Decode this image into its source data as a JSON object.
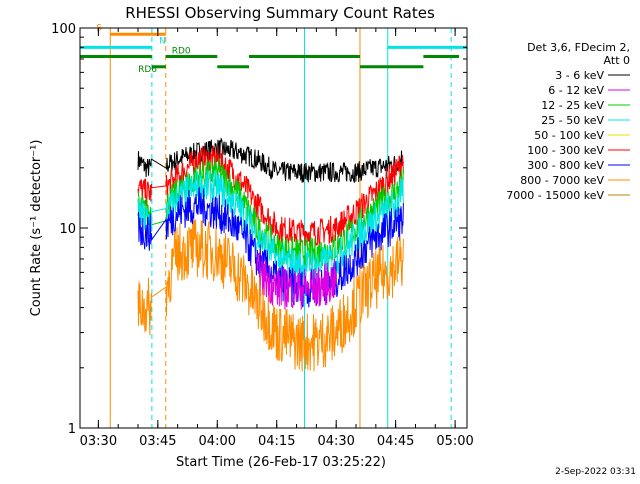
{
  "chart_data": {
    "type": "line",
    "title": "RHESSI Observing Summary Count Rates",
    "xlabel": "Start Time (26-Feb-17 03:25:22)",
    "ylabel": "Count Rate (s⁻¹ detector⁻¹)",
    "y_scale": "log",
    "ylim": [
      1,
      100
    ],
    "xlim": [
      "03:25:22",
      "05:03:00"
    ],
    "x_ticks": [
      "03:30",
      "03:45",
      "04:00",
      "04:15",
      "04:30",
      "04:45",
      "05:00"
    ],
    "y_ticks": [
      "1",
      "10",
      "100"
    ],
    "footer": "2-Sep-2022 03:31",
    "legend": {
      "header": [
        "Det 3,6, FDecim 2,",
        "Att 0"
      ],
      "placement": "top-right",
      "entries": [
        {
          "label": "3 - 6 keV",
          "color": "#000000"
        },
        {
          "label": "6 - 12 keV",
          "color": "#e000e0"
        },
        {
          "label": "12 - 25 keV",
          "color": "#00cc00"
        },
        {
          "label": "25 - 50 keV",
          "color": "#00e5e5"
        },
        {
          "label": "50 - 100 keV",
          "color": "#e5e500"
        },
        {
          "label": "100 - 300 keV",
          "color": "#ff0000"
        },
        {
          "label": "300 - 800 keV",
          "color": "#0000ff"
        },
        {
          "label": "800 - 7000 keV",
          "color": "#ff8c00"
        },
        {
          "label": "7000 - 15000 keV",
          "color": "#b8860b"
        }
      ]
    },
    "data_start": "03:40",
    "data_end": "04:47",
    "series": [
      {
        "name": "3 - 6 keV",
        "color": "#000000",
        "x": [
          "03:40",
          "03:42",
          "03:44",
          "03:46",
          "03:50",
          "03:55",
          "04:00",
          "04:05",
          "04:10",
          "04:15",
          "04:20",
          "04:25",
          "04:30",
          "04:35",
          "04:40",
          "04:45",
          "04:47"
        ],
        "y": [
          22,
          20,
          20,
          20,
          22,
          24,
          25,
          24,
          22,
          19,
          19,
          19,
          19,
          19,
          20,
          21,
          23
        ]
      },
      {
        "name": "100 - 300 keV",
        "color": "#ff0000",
        "x": [
          "03:40",
          "03:42",
          "03:44",
          "03:46",
          "03:50",
          "03:55",
          "04:00",
          "04:05",
          "04:10",
          "04:15",
          "04:20",
          "04:25",
          "04:30",
          "04:35",
          "04:40",
          "04:45",
          "04:47"
        ],
        "y": [
          16,
          15,
          15,
          15,
          18,
          22,
          22,
          18,
          13,
          10,
          9.5,
          9.5,
          10,
          12,
          15,
          19,
          22
        ]
      },
      {
        "name": "12 - 25 keV",
        "color": "#00cc00",
        "x": [
          "03:40",
          "03:42",
          "03:44",
          "03:46",
          "03:50",
          "03:55",
          "04:00",
          "04:05",
          "04:10",
          "04:15",
          "04:20",
          "04:25",
          "04:30",
          "04:35",
          "04:40",
          "04:45",
          "04:47"
        ],
        "y": [
          13,
          12,
          12,
          12,
          15,
          18,
          19,
          15,
          10,
          8,
          7.5,
          7.5,
          8,
          10,
          12.5,
          15,
          17
        ]
      },
      {
        "name": "25 - 50 keV",
        "color": "#00e5e5",
        "x": [
          "03:40",
          "03:42",
          "03:44",
          "03:46",
          "03:50",
          "03:55",
          "04:00",
          "04:05",
          "04:10",
          "04:15",
          "04:20",
          "04:25",
          "04:30",
          "04:35",
          "04:40",
          "04:45",
          "04:47"
        ],
        "y": [
          12,
          11,
          11,
          11,
          14,
          16,
          16,
          13,
          9,
          7,
          6.5,
          6.5,
          7,
          9,
          11,
          13,
          15
        ]
      },
      {
        "name": "300 - 800 keV",
        "color": "#0000ff",
        "x": [
          "03:40",
          "03:42",
          "03:44",
          "03:46",
          "03:50",
          "03:55",
          "04:00",
          "04:05",
          "04:10",
          "04:15",
          "04:20",
          "04:25",
          "04:30",
          "04:35",
          "04:40",
          "04:45",
          "04:47"
        ],
        "y": [
          10,
          9.5,
          9.5,
          9.5,
          12,
          13,
          12,
          10,
          7,
          5.5,
          5,
          5,
          5.5,
          7,
          9,
          10.5,
          11
        ]
      },
      {
        "name": "6 - 12 keV",
        "color": "#e000e0",
        "x": [
          "04:10",
          "04:15",
          "04:20",
          "04:25",
          "04:30"
        ],
        "y": [
          6,
          5,
          5,
          5,
          5.5
        ]
      },
      {
        "name": "800 - 7000 keV",
        "color": "#ff8c00",
        "x": [
          "03:40",
          "03:42",
          "03:44",
          "03:46",
          "03:50",
          "03:55",
          "04:00",
          "04:05",
          "04:10",
          "04:15",
          "04:20",
          "04:25",
          "04:30",
          "04:35",
          "04:40",
          "04:45",
          "04:47"
        ],
        "y": [
          4,
          4,
          4,
          4,
          7.5,
          8,
          7.5,
          6,
          4.2,
          3,
          2.7,
          2.7,
          3,
          4.2,
          5.5,
          6.5,
          7
        ]
      }
    ],
    "bars": {
      "S": {
        "color": "#ff8c00",
        "from": "03:33",
        "to": "03:47",
        "y": 93
      },
      "N": {
        "color": "#00e5e5",
        "segments": [
          [
            "03:25:22",
            "03:43:30"
          ],
          [
            "04:43",
            "05:03"
          ]
        ],
        "y": 80
      },
      "RD0": {
        "color": "#008800",
        "segments": [
          [
            "03:25:22",
            "03:43:30"
          ],
          [
            "03:47",
            "04:00"
          ],
          [
            "04:08",
            "04:36"
          ],
          [
            "04:52",
            "05:01"
          ]
        ],
        "y": 72
      },
      "RD6": {
        "color": "#008800",
        "segments": [
          [
            "03:43:30",
            "03:47"
          ],
          [
            "04:00",
            "04:08"
          ],
          [
            "04:36",
            "04:52"
          ]
        ],
        "y": 64
      }
    },
    "vertical_markers": [
      {
        "x": "03:25:22",
        "color": "#00e5e5",
        "style": "solid"
      },
      {
        "x": "03:33",
        "color": "#ff8c00",
        "style": "solid"
      },
      {
        "x": "03:43:30",
        "color": "#00e5e5",
        "style": "dashed"
      },
      {
        "x": "03:47",
        "color": "#ff8c00",
        "style": "dashed"
      },
      {
        "x": "04:22",
        "color": "#00e5e5",
        "style": "solid"
      },
      {
        "x": "04:36",
        "color": "#ff8c00",
        "style": "solid"
      },
      {
        "x": "04:43",
        "color": "#00e5e5",
        "style": "solid"
      },
      {
        "x": "04:59",
        "color": "#00e5e5",
        "style": "dashed"
      }
    ],
    "bar_labels": {
      "S": "S",
      "N": "N",
      "RD0": "RD0",
      "RD6": "RD6"
    }
  }
}
